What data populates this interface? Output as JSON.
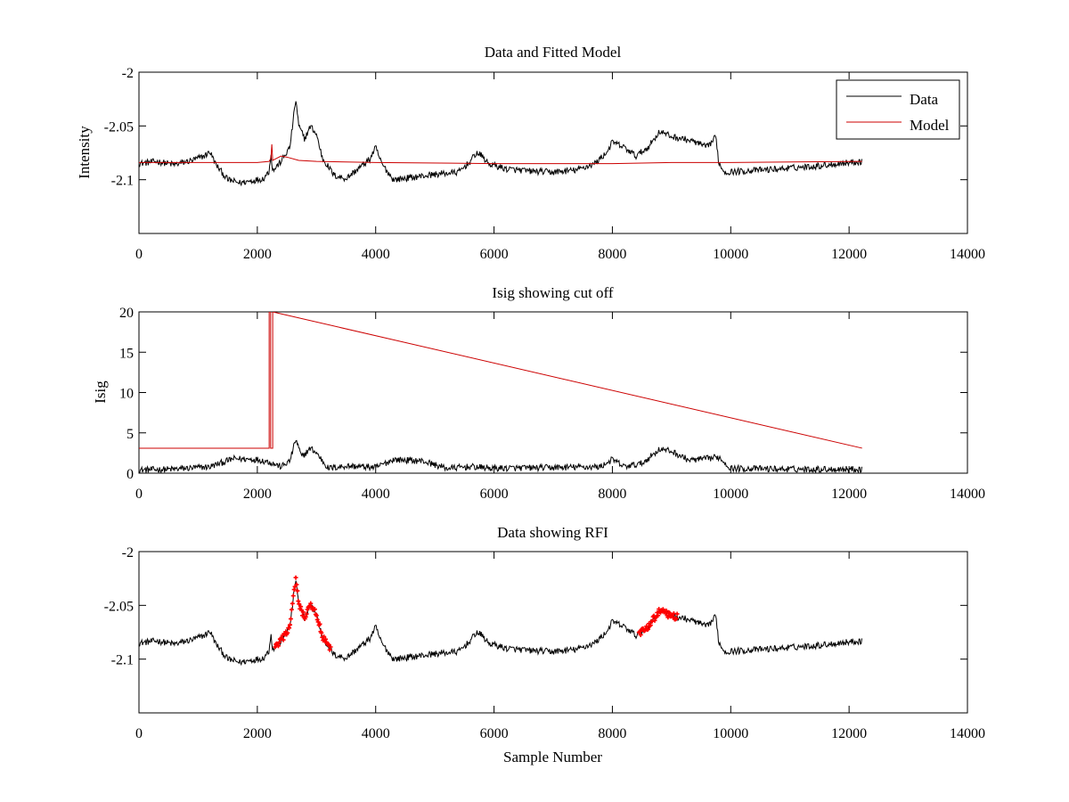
{
  "chart_data": [
    {
      "type": "line",
      "title": "Data and Fitted Model",
      "xlabel": "",
      "ylabel": "Intensity",
      "xlim": [
        0,
        14000
      ],
      "ylim": [
        -2.15,
        -2.0
      ],
      "xticks": [
        "0",
        "2000",
        "4000",
        "6000",
        "8000",
        "10000",
        "12000",
        "14000"
      ],
      "yticks": [
        "-2",
        "-2.05",
        "-2.1"
      ],
      "ytick_values": [
        -2.0,
        -2.05,
        -2.1
      ],
      "legend": {
        "placement": "top-right",
        "entries": [
          "Data",
          "Model"
        ]
      },
      "series": [
        {
          "name": "Data",
          "color": "#000000",
          "noise": 0.003,
          "x": [
            0,
            300,
            600,
            900,
            1100,
            1200,
            1300,
            1500,
            1700,
            1900,
            2100,
            2200,
            2230,
            2260,
            2400,
            2550,
            2650,
            2700,
            2800,
            2900,
            3000,
            3100,
            3300,
            3500,
            3700,
            3900,
            4000,
            4100,
            4300,
            4600,
            5000,
            5400,
            5600,
            5700,
            5800,
            5900,
            6200,
            6600,
            7000,
            7400,
            7700,
            7900,
            8000,
            8200,
            8400,
            8600,
            8800,
            9000,
            9200,
            9400,
            9600,
            9750,
            9800,
            9900,
            10200,
            10800,
            11500,
            12000,
            12220
          ],
          "y": [
            -2.085,
            -2.083,
            -2.086,
            -2.082,
            -2.078,
            -2.074,
            -2.086,
            -2.1,
            -2.103,
            -2.101,
            -2.099,
            -2.092,
            -2.075,
            -2.092,
            -2.083,
            -2.07,
            -2.025,
            -2.05,
            -2.062,
            -2.05,
            -2.058,
            -2.08,
            -2.096,
            -2.099,
            -2.09,
            -2.081,
            -2.07,
            -2.085,
            -2.1,
            -2.098,
            -2.095,
            -2.093,
            -2.083,
            -2.075,
            -2.078,
            -2.085,
            -2.09,
            -2.092,
            -2.093,
            -2.091,
            -2.085,
            -2.075,
            -2.065,
            -2.07,
            -2.078,
            -2.07,
            -2.055,
            -2.06,
            -2.062,
            -2.065,
            -2.07,
            -2.06,
            -2.085,
            -2.093,
            -2.092,
            -2.09,
            -2.087,
            -2.084,
            -2.083
          ]
        },
        {
          "name": "Model",
          "color": "#cc0000",
          "noise": 0,
          "x": [
            0,
            2000,
            2200,
            2230,
            2245,
            2260,
            2400,
            2500,
            2700,
            3000,
            4000,
            6000,
            8000,
            9000,
            10000,
            12220
          ],
          "y": [
            -2.084,
            -2.084,
            -2.083,
            -2.08,
            -2.067,
            -2.082,
            -2.078,
            -2.079,
            -2.082,
            -2.083,
            -2.084,
            -2.085,
            -2.085,
            -2.084,
            -2.084,
            -2.083
          ]
        }
      ]
    },
    {
      "type": "line",
      "title": "Isig showing cut off",
      "xlabel": "",
      "ylabel": "Isig",
      "xlim": [
        0,
        14000
      ],
      "ylim": [
        0,
        20
      ],
      "xticks": [
        "0",
        "2000",
        "4000",
        "6000",
        "8000",
        "10000",
        "12000",
        "14000"
      ],
      "yticks": [
        "0",
        "5",
        "10",
        "15",
        "20"
      ],
      "ytick_values": [
        0,
        5,
        10,
        15,
        20
      ],
      "series": [
        {
          "color": "#000000",
          "noise": 0.4,
          "x": [
            0,
            600,
            1200,
            1600,
            2000,
            2200,
            2400,
            2550,
            2650,
            2750,
            2900,
            3000,
            3200,
            3500,
            3800,
            4000,
            4300,
            4800,
            5200,
            5600,
            6000,
            7000,
            7800,
            8000,
            8200,
            8500,
            8800,
            9000,
            9300,
            9600,
            9800,
            10000,
            11000,
            12220
          ],
          "y": [
            0.4,
            0.5,
            0.8,
            1.8,
            1.7,
            1.4,
            0.8,
            1.5,
            4.2,
            2.0,
            3.1,
            2.5,
            0.6,
            0.9,
            0.8,
            0.7,
            1.7,
            1.5,
            0.6,
            0.8,
            0.6,
            0.7,
            0.8,
            1.7,
            0.8,
            1.2,
            3.0,
            2.7,
            1.6,
            1.8,
            2.0,
            0.6,
            0.5,
            0.5
          ]
        },
        {
          "color": "#cc0000",
          "noise": 0,
          "x": [
            0,
            2200,
            2200,
            2225,
            2225,
            2260,
            2260,
            12220
          ],
          "y": [
            3.1,
            3.1,
            20,
            20,
            3.1,
            3.1,
            20,
            3.1
          ]
        }
      ]
    },
    {
      "type": "line",
      "title": "Data showing RFI",
      "xlabel": "Sample Number",
      "ylabel": "",
      "xlim": [
        0,
        14000
      ],
      "ylim": [
        -2.15,
        -2.0
      ],
      "xticks": [
        "0",
        "2000",
        "4000",
        "6000",
        "8000",
        "10000",
        "12000",
        "14000"
      ],
      "yticks": [
        "-2",
        "-2.05",
        "-2.1"
      ],
      "ytick_values": [
        -2.0,
        -2.05,
        -2.1
      ],
      "series": [
        {
          "color": "#000000",
          "noise": 0.003,
          "x": [
            0,
            300,
            600,
            900,
            1100,
            1200,
            1300,
            1500,
            1700,
            1900,
            2100,
            2200,
            2230,
            2260,
            2400,
            2550,
            2650,
            2700,
            2800,
            2900,
            3000,
            3100,
            3300,
            3500,
            3700,
            3900,
            4000,
            4100,
            4300,
            4600,
            5000,
            5400,
            5600,
            5700,
            5800,
            5900,
            6200,
            6600,
            7000,
            7400,
            7700,
            7900,
            8000,
            8200,
            8400,
            8600,
            8800,
            9000,
            9200,
            9400,
            9600,
            9750,
            9800,
            9900,
            10200,
            10800,
            11500,
            12000,
            12220
          ],
          "y": [
            -2.085,
            -2.083,
            -2.086,
            -2.082,
            -2.078,
            -2.074,
            -2.086,
            -2.1,
            -2.103,
            -2.101,
            -2.099,
            -2.092,
            -2.075,
            -2.092,
            -2.083,
            -2.07,
            -2.025,
            -2.05,
            -2.062,
            -2.05,
            -2.058,
            -2.08,
            -2.096,
            -2.099,
            -2.09,
            -2.081,
            -2.07,
            -2.085,
            -2.1,
            -2.098,
            -2.095,
            -2.093,
            -2.083,
            -2.075,
            -2.078,
            -2.085,
            -2.09,
            -2.092,
            -2.093,
            -2.091,
            -2.085,
            -2.075,
            -2.065,
            -2.07,
            -2.078,
            -2.07,
            -2.055,
            -2.06,
            -2.062,
            -2.065,
            -2.07,
            -2.06,
            -2.085,
            -2.093,
            -2.092,
            -2.09,
            -2.087,
            -2.084,
            -2.083
          ]
        }
      ],
      "rfi_ranges": [
        {
          "color": "#ff0000",
          "start": 2300,
          "end": 3250
        },
        {
          "color": "#ff0000",
          "start": 8450,
          "end": 9100
        }
      ]
    }
  ]
}
